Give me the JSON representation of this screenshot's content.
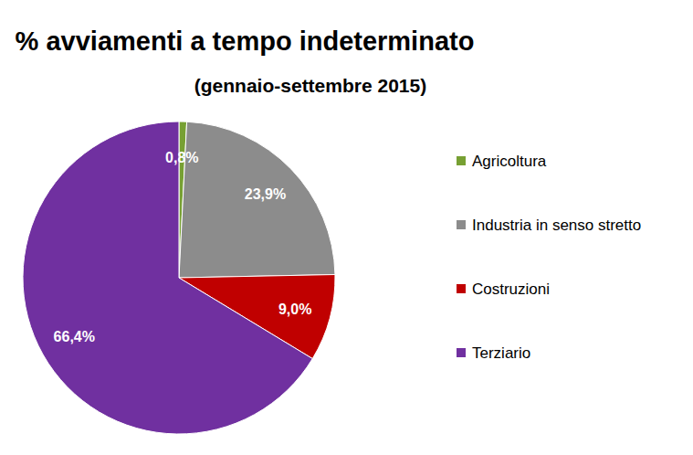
{
  "chart_data": {
    "type": "pie",
    "title": "% avviamenti a tempo indeterminato",
    "subtitle": "(gennaio-settembre 2015)",
    "categories": [
      "Agricoltura",
      "Industria in senso stretto",
      "Costruzioni",
      "Terziario"
    ],
    "values": [
      0.8,
      23.9,
      9.0,
      66.4
    ],
    "value_labels": [
      "0,8%",
      "23,9%",
      "9,0%",
      "66,4%"
    ],
    "colors": [
      "#77a033",
      "#8c8c8c",
      "#c00000",
      "#7030a0"
    ],
    "data_labels": true,
    "legend": "right"
  }
}
